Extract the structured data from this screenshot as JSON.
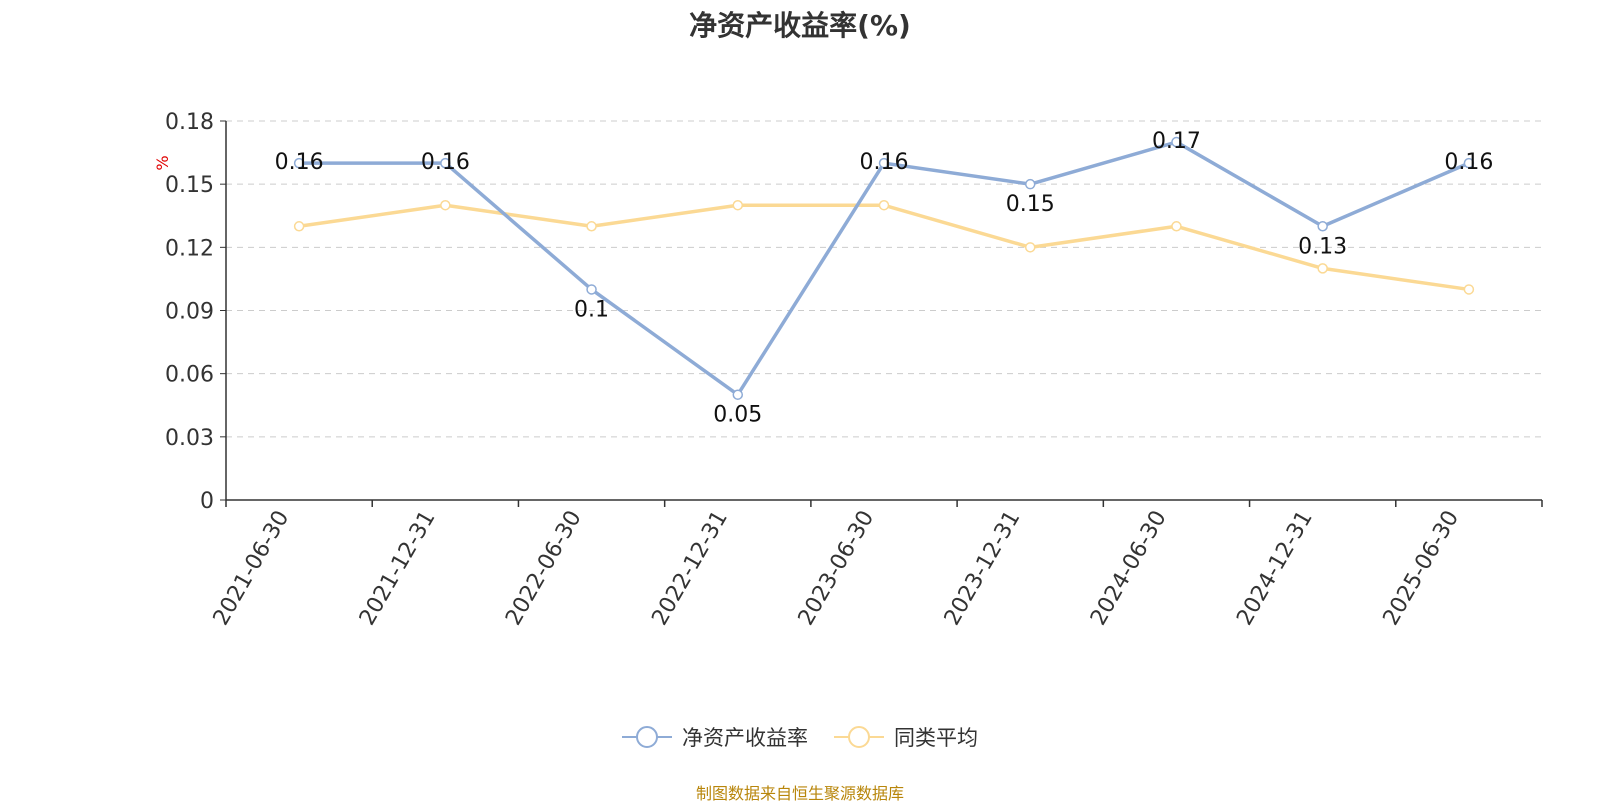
{
  "chart_data": {
    "type": "line",
    "title": "净资产收益率(%)",
    "ylabel": "%",
    "xlabel": "",
    "categories": [
      "2021-06-30",
      "2021-12-31",
      "2022-06-30",
      "2022-12-31",
      "2023-06-30",
      "2023-12-31",
      "2024-06-30",
      "2024-12-31",
      "2025-06-30"
    ],
    "ylim": [
      0,
      0.18
    ],
    "yticks": [
      "0",
      "0.03",
      "0.06",
      "0.09",
      "0.12",
      "0.15",
      "0.18"
    ],
    "grid": true,
    "legend_position": "bottom",
    "series": [
      {
        "name": "净资产收益率",
        "color": "#8eabd6",
        "values": [
          0.16,
          0.16,
          0.1,
          0.05,
          0.16,
          0.15,
          0.17,
          0.13,
          0.16
        ],
        "labels": [
          "0.16",
          "0.16",
          "0.1",
          "0.05",
          "0.16",
          "0.15",
          "0.17",
          "0.13",
          "0.16"
        ]
      },
      {
        "name": "同类平均",
        "color": "#fbd994",
        "values": [
          0.13,
          0.14,
          0.13,
          0.14,
          0.14,
          0.12,
          0.13,
          0.11,
          0.1
        ]
      }
    ],
    "source": "制图数据来自恒生聚源数据库"
  }
}
